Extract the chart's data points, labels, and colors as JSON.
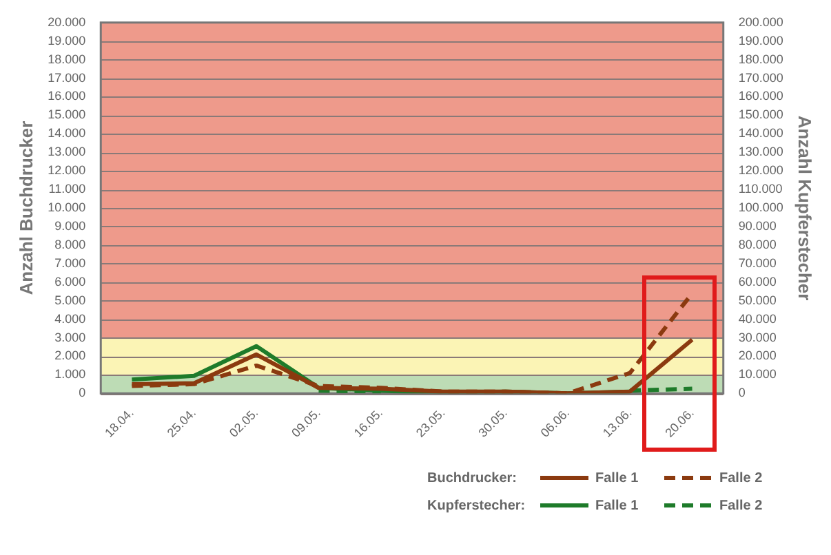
{
  "chart_data": {
    "type": "line",
    "ylabel": "Anzahl Buchdrucker",
    "y2label": "Anzahl Kupferstecher",
    "categories": [
      "18.04.",
      "25.04.",
      "02.05.",
      "09.05.",
      "16.05.",
      "23.05.",
      "30.05.",
      "06.06.",
      "13.06.",
      "20.06."
    ],
    "series": [
      {
        "name": "Falle 1",
        "color": "#8b3a0f",
        "line_style": "solid",
        "values": [
          500,
          550,
          2100,
          300,
          250,
          100,
          100,
          0,
          100,
          2900
        ]
      },
      {
        "name": "Falle 2",
        "color": "#8b3a0f",
        "line_style": "dashed",
        "values": [
          400,
          500,
          1500,
          400,
          300,
          100,
          100,
          0,
          1100,
          5400
        ]
      },
      {
        "name": "Falle 1",
        "color": "#1e7b2a",
        "line_style": "solid",
        "axis": "y2",
        "values": [
          7500,
          9500,
          25500,
          3000,
          1500,
          0,
          1000,
          0,
          1000,
          null
        ]
      },
      {
        "name": "Falle 2",
        "color": "#1e7b2a",
        "line_style": "dashed",
        "axis": "y2",
        "values": [
          null,
          null,
          null,
          1500,
          1000,
          null,
          null,
          null,
          1500,
          2500
        ]
      }
    ],
    "ylim": [
      0,
      20000
    ],
    "yticks": [
      0,
      {
        "value": 1000,
        "label": "1.000"
      },
      {
        "value": 2000,
        "label": "2.000"
      },
      {
        "value": 3000,
        "label": "3.000"
      },
      {
        "value": 4000,
        "label": "4.000"
      },
      {
        "value": 5000,
        "label": "5.000"
      },
      {
        "value": 6000,
        "label": "6.000"
      },
      {
        "value": 7000,
        "label": "7.000"
      },
      {
        "value": 8000,
        "label": "8.000"
      },
      {
        "value": 9000,
        "label": "9.000"
      },
      {
        "value": 10000,
        "label": "10.000"
      },
      {
        "value": 11000,
        "label": "11.000"
      },
      {
        "value": 12000,
        "label": "12.000"
      },
      {
        "value": 13000,
        "label": "13.000"
      },
      {
        "value": 14000,
        "label": "14.000"
      },
      {
        "value": 15000,
        "label": "15.000"
      },
      {
        "value": 16000,
        "label": "16.000"
      },
      {
        "value": 17000,
        "label": "17.000"
      },
      {
        "value": 18000,
        "label": "18.000"
      },
      {
        "value": 19000,
        "label": "19.000"
      },
      {
        "value": 20000,
        "label": "20.000"
      }
    ],
    "y2lim": [
      0,
      200000
    ],
    "y2ticks": [
      0,
      {
        "value": 10000,
        "label": "10.000"
      },
      {
        "value": 20000,
        "label": "20.000"
      },
      {
        "value": 30000,
        "label": "30.000"
      },
      {
        "value": 40000,
        "label": "40.000"
      },
      {
        "value": 50000,
        "label": "50.000"
      },
      {
        "value": 60000,
        "label": "60.000"
      },
      {
        "value": 70000,
        "label": "70.000"
      },
      {
        "value": 80000,
        "label": "80.000"
      },
      {
        "value": 90000,
        "label": "90.000"
      },
      {
        "value": 100000,
        "label": "100.000"
      },
      {
        "value": 110000,
        "label": "110.000"
      },
      {
        "value": 120000,
        "label": "120.000"
      },
      {
        "value": 130000,
        "label": "130.000"
      },
      {
        "value": 140000,
        "label": "140.000"
      },
      {
        "value": 150000,
        "label": "150.000"
      },
      {
        "value": 160000,
        "label": "160.000"
      },
      {
        "value": 170000,
        "label": "170.000"
      },
      {
        "value": 180000,
        "label": "180.000"
      },
      {
        "value": 190000,
        "label": "190.000"
      },
      {
        "value": 200000,
        "label": "200.000"
      }
    ],
    "bands": [
      {
        "axis": "y",
        "from": 0,
        "to": 1000,
        "color": "#bddcb5"
      },
      {
        "axis": "y",
        "from": 1000,
        "to": 3000,
        "color": "#fbf4b5"
      },
      {
        "axis": "y",
        "from": 3000,
        "to": 20000,
        "color": "#ee9a8b"
      }
    ],
    "annotations": [
      "Buchdrucker:",
      "Kupferstecher:"
    ],
    "grid": "y",
    "legend": "bottom right",
    "marker": "none"
  }
}
